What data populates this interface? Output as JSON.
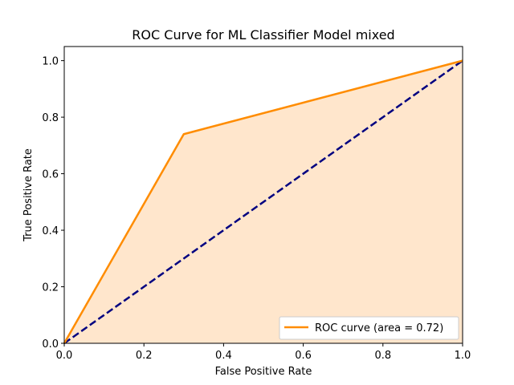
{
  "chart_data": {
    "type": "line",
    "title": "ROC Curve for ML Classifier Model mixed",
    "xlabel": "False Positive Rate",
    "ylabel": "True Positive Rate",
    "xlim": [
      0,
      1
    ],
    "ylim": [
      0,
      1.05
    ],
    "x_ticks": [
      "0.0",
      "0.2",
      "0.4",
      "0.6",
      "0.8",
      "1.0"
    ],
    "y_ticks": [
      "0.0",
      "0.2",
      "0.4",
      "0.6",
      "0.8",
      "1.0"
    ],
    "grid": false,
    "legend_position": "lower-right",
    "series": [
      {
        "name": "ROC curve (area = 0.72)",
        "x": [
          0.0,
          0.3,
          1.0
        ],
        "y": [
          0.0,
          0.74,
          1.0
        ],
        "color": "#ff8c00",
        "fill_color": "#ffe6cc",
        "style": "solid"
      },
      {
        "x": [
          0.0,
          1.0
        ],
        "y": [
          0.0,
          1.0
        ],
        "color": "#000080",
        "style": "dashed"
      }
    ]
  }
}
